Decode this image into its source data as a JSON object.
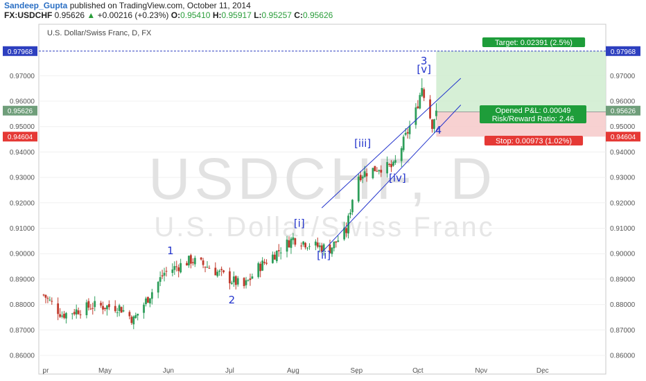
{
  "header": {
    "author": "Sandeep_Gupta",
    "published": "published on TradingView.com, October 11, 2014",
    "symbol": "FX:USDCHF",
    "last": "0.95626",
    "change": "+0.00216 (+0.23%)",
    "o_label": "O:",
    "o": "0.95410",
    "h_label": "H:",
    "h": "0.95917",
    "l_label": "L:",
    "l": "0.95257",
    "c_label": "C:",
    "c": "0.95626"
  },
  "chart_title": "U.S. Dollar/Swiss Franc, D, FX",
  "watermark": {
    "symbol": "USDCHF, D",
    "name": "U.S. Dollar/Swiss Franc"
  },
  "colors": {
    "up": "#2e9e5b",
    "down": "#c0392b",
    "channel": "#2233cc",
    "target_zone": "#cfeccf",
    "stop_zone": "#f6c9c9",
    "target_badge": "#1e9d3a",
    "stop_badge": "#e53935",
    "price_badge": "#2d3fbf"
  },
  "badges": {
    "target": "Target: 0.02391 (2.5%)",
    "pnl": "Opened P&L: 0.00049",
    "rr": "Risk/Reward Ratio: 2.46",
    "stop": "Stop: 0.00973 (1.02%)"
  },
  "price_labels": {
    "target": "0.97968",
    "current": "0.95626",
    "stop": "0.94604"
  },
  "chart_data": {
    "type": "candlestick",
    "title": "U.S. Dollar/Swiss Franc, D, FX",
    "ylim": [
      0.855,
      0.981
    ],
    "y_ticks": [
      "0.97000",
      "0.96000",
      "0.95000",
      "0.94000",
      "0.93000",
      "0.92000",
      "0.91000",
      "0.90000",
      "0.89000",
      "0.88000",
      "0.87000",
      "0.86000"
    ],
    "x_ticks": [
      "pr",
      "May",
      "Jun",
      "Jul",
      "Aug",
      "Sep",
      "Oct",
      "Nov",
      "Dec"
    ],
    "target_price": 0.97968,
    "entry_price": 0.95577,
    "stop_price": 0.94604,
    "close": 0.95626,
    "wave_labels": [
      "1",
      "2",
      "[i]",
      "[ii]",
      "[iii]",
      "[iv]",
      "3",
      "[v]",
      "4"
    ],
    "anchors": [
      {
        "date": "Apr 1",
        "close": 0.8838
      },
      {
        "date": "Apr 10",
        "close": 0.876
      },
      {
        "date": "Apr 25",
        "close": 0.8795
      },
      {
        "date": "May 8",
        "close": 0.879
      },
      {
        "date": "May 15",
        "close": 0.874
      },
      {
        "date": "May 30",
        "close": 0.8925
      },
      {
        "date": "Jun 12",
        "close": 0.8975
      },
      {
        "date": "Jun 20",
        "close": 0.895
      },
      {
        "date": "Jul 1",
        "close": 0.89
      },
      {
        "date": "Jul 8",
        "close": 0.887
      },
      {
        "date": "Jul 15",
        "close": 0.8945
      },
      {
        "date": "Aug 1",
        "close": 0.906
      },
      {
        "date": "Aug 12",
        "close": 0.903
      },
      {
        "date": "Aug 19",
        "close": 0.902
      },
      {
        "date": "Aug 27",
        "close": 0.909
      },
      {
        "date": "Sep 1",
        "close": 0.9305
      },
      {
        "date": "Sep 12",
        "close": 0.934
      },
      {
        "date": "Sep 19",
        "close": 0.934
      },
      {
        "date": "Sep 30",
        "close": 0.956
      },
      {
        "date": "Oct 3",
        "close": 0.9658
      },
      {
        "date": "Oct 8",
        "close": 0.951
      },
      {
        "date": "Oct 10",
        "close": 0.9563
      }
    ]
  }
}
